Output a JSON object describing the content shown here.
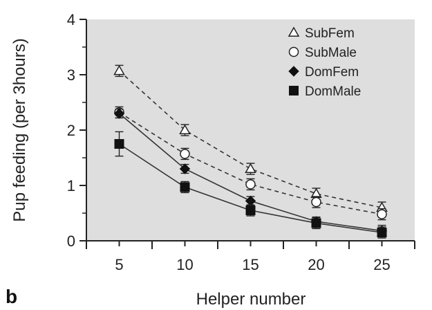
{
  "chart_data": {
    "type": "line",
    "panel_label": "b",
    "xlabel": "Helper number",
    "ylabel": "Pup feeding (per 3hours)",
    "x": [
      5,
      10,
      15,
      20,
      25
    ],
    "xlim": [
      2.5,
      27.5
    ],
    "ylim": [
      0,
      4
    ],
    "xticks": [
      5,
      10,
      15,
      20,
      25
    ],
    "yticks": [
      0,
      1,
      2,
      3,
      4
    ],
    "plot_background": "#dedede",
    "legend_position": "top-right",
    "series": [
      {
        "name": "SubFem",
        "marker": "triangle-open",
        "line_style": "dashed",
        "values": [
          3.07,
          2.0,
          1.3,
          0.85,
          0.6
        ],
        "errors": [
          0.1,
          0.1,
          0.1,
          0.1,
          0.1
        ]
      },
      {
        "name": "SubMale",
        "marker": "circle-open",
        "line_style": "dashed",
        "values": [
          2.32,
          1.57,
          1.02,
          0.7,
          0.48
        ],
        "errors": [
          0.1,
          0.1,
          0.1,
          0.1,
          0.1
        ]
      },
      {
        "name": "DomFem",
        "marker": "diamond-filled",
        "line_style": "solid",
        "values": [
          2.3,
          1.3,
          0.72,
          0.35,
          0.18
        ],
        "errors": [
          0.08,
          0.08,
          0.08,
          0.08,
          0.1
        ]
      },
      {
        "name": "DomMale",
        "marker": "square-filled",
        "line_style": "solid",
        "values": [
          1.75,
          0.97,
          0.55,
          0.32,
          0.15
        ],
        "errors": [
          0.22,
          0.1,
          0.1,
          0.1,
          0.1
        ]
      }
    ]
  }
}
